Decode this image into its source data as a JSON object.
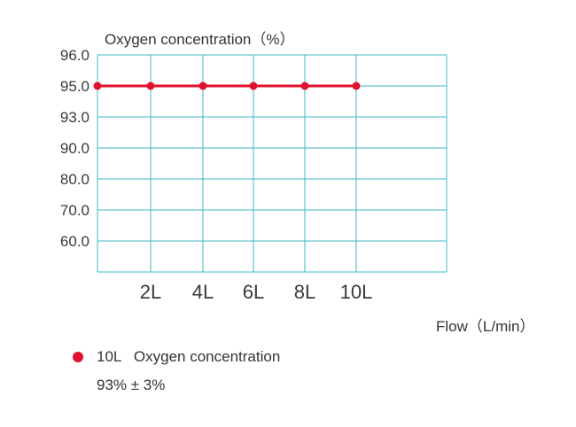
{
  "chart_data": {
    "type": "line",
    "ylabel": "Oxygen concentration（%）",
    "xlabel": "Flow（L/min）",
    "y_ticks": [
      "96.0",
      "95.0",
      "93.0",
      "90.0",
      "80.0",
      "70.0",
      "60.0"
    ],
    "x_ticks": [
      "2L",
      "4L",
      "6L",
      "8L",
      "10L"
    ],
    "series": [
      {
        "x": [
          "0L",
          "2L",
          "4L",
          "6L",
          "8L",
          "10L"
        ],
        "values": [
          95.0,
          95.0,
          95.0,
          95.0,
          95.0,
          95.0
        ]
      }
    ],
    "grid": true,
    "colors": {
      "grid": "#43b8c3",
      "series": "#e0102e"
    }
  },
  "legend": {
    "label": "10L   Oxygen concentration",
    "spec": "93% ± 3%"
  }
}
